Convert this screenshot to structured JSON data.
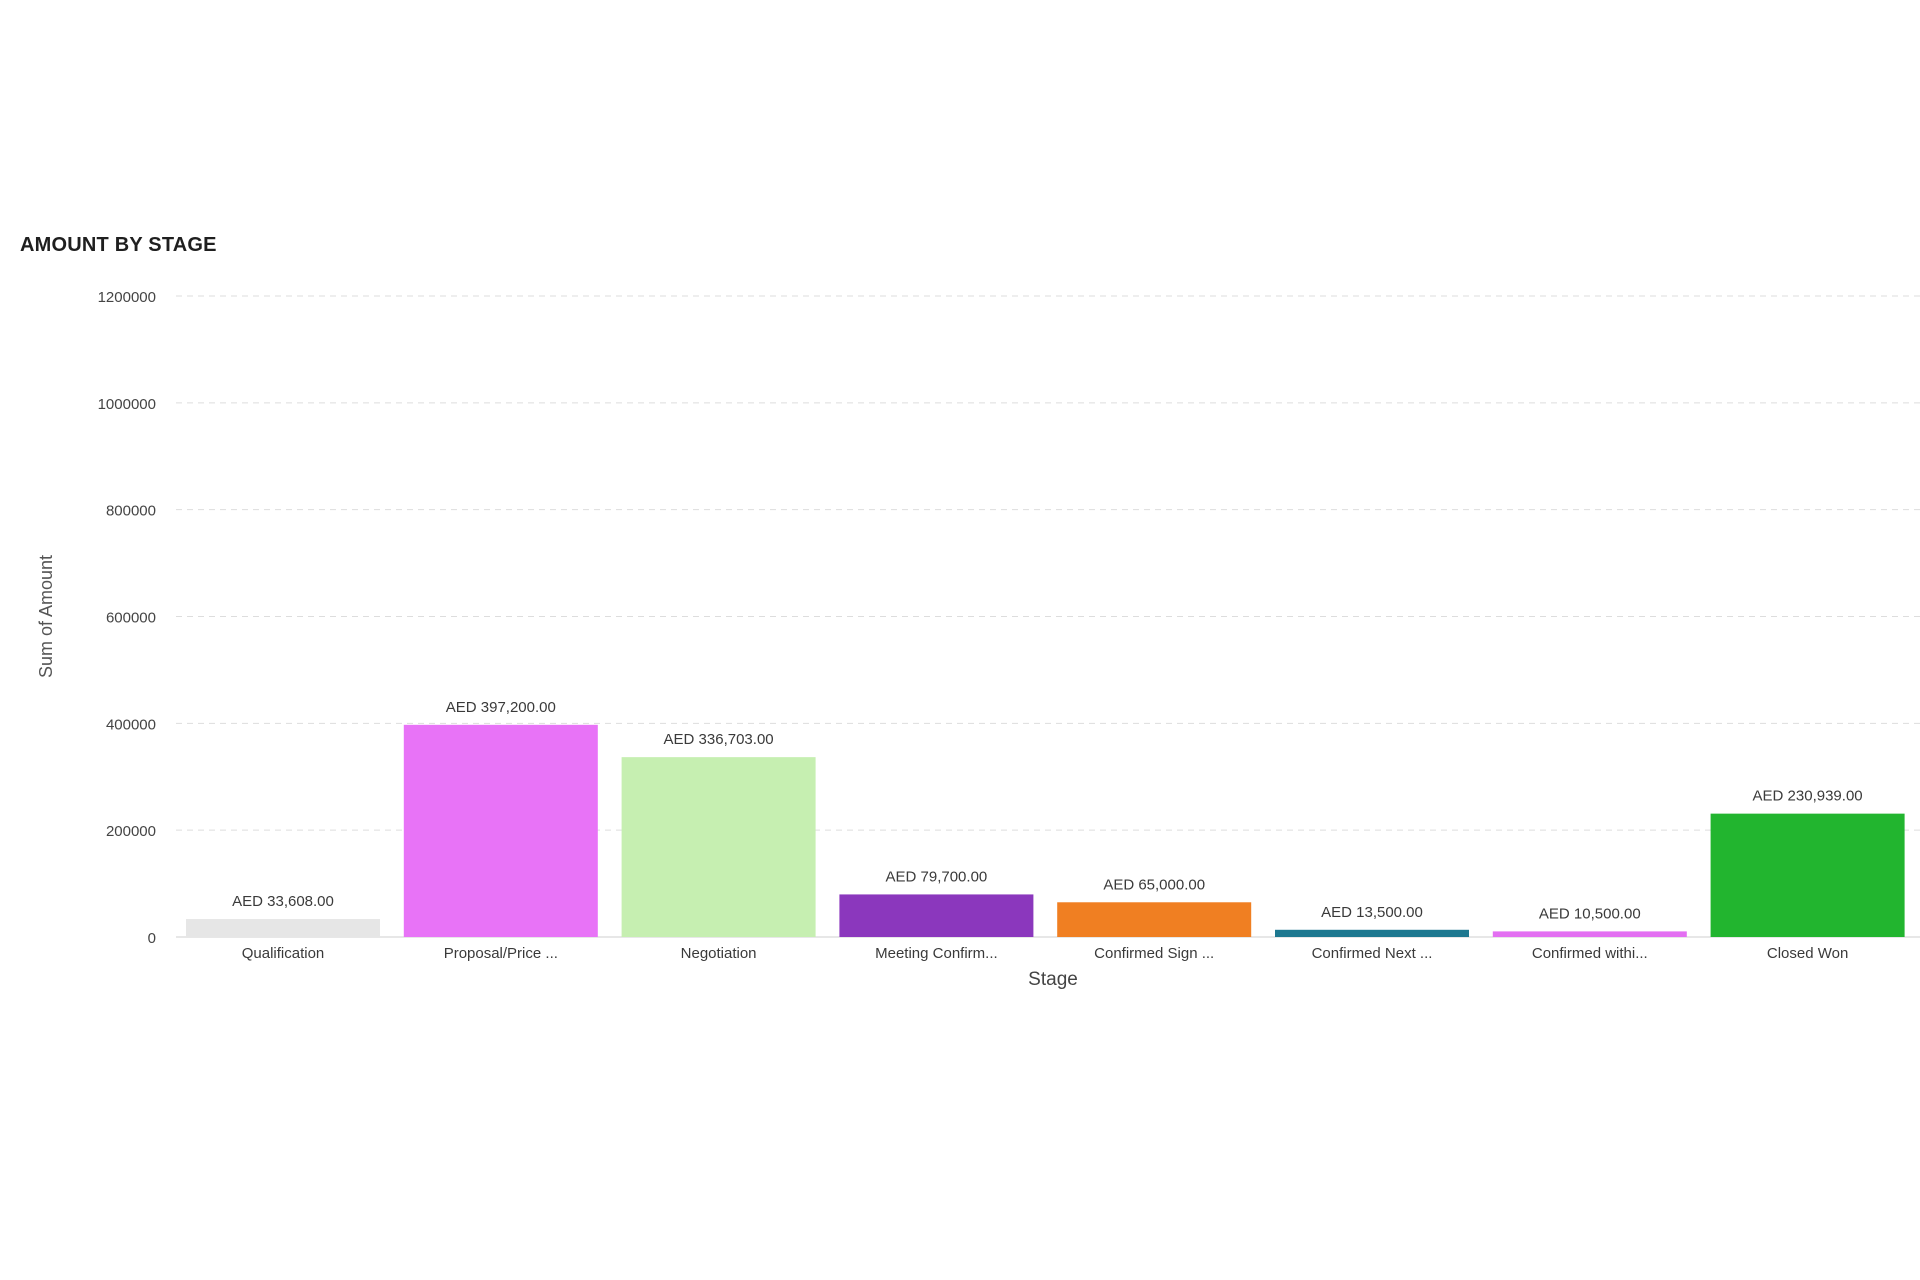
{
  "chart_data": {
    "type": "bar",
    "title": "AMOUNT BY STAGE",
    "xlabel": "Stage",
    "ylabel": "Sum of Amount",
    "ylim": [
      0,
      1200000
    ],
    "yticks": [
      0,
      200000,
      400000,
      600000,
      800000,
      1000000,
      1200000
    ],
    "ytick_labels": [
      "0",
      "200000",
      "400000",
      "600000",
      "800000",
      "1000000",
      "1200000"
    ],
    "grid": true,
    "categories": [
      "Qualification",
      "Proposal/Price ...",
      "Negotiation",
      "Meeting Confirm...",
      "Confirmed Sign ...",
      "Confirmed Next ...",
      "Confirmed withi...",
      "Closed Won"
    ],
    "values": [
      33608,
      397200,
      336703,
      79700,
      65000,
      13500,
      10500,
      230939
    ],
    "data_labels": [
      "AED 33,608.00",
      "AED 397,200.00",
      "AED 336,703.00",
      "AED 79,700.00",
      "AED 65,000.00",
      "AED 13,500.00",
      "AED 10,500.00",
      "AED 230,939.00"
    ],
    "colors": [
      "#e6e6e6",
      "#e873f7",
      "#c6efb1",
      "#8b37bd",
      "#f07f22",
      "#1d7890",
      "#e36ff2",
      "#22b52f"
    ]
  }
}
